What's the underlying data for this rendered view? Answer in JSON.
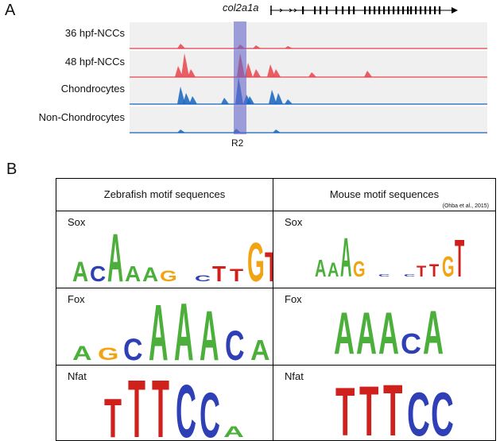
{
  "panel_a": {
    "letter": "A",
    "gene": "col2a1a",
    "tracks": [
      {
        "label": "36 hpf-NCCs",
        "color": "#e8444c"
      },
      {
        "label": "48 hpf-NCCs",
        "color": "#e8444c"
      },
      {
        "label": "Chondrocytes",
        "color": "#1565c0"
      },
      {
        "label": "Non-Chondrocytes",
        "color": "#1565c0"
      }
    ],
    "region_label": "R2"
  },
  "panel_b": {
    "letter": "B",
    "columns": [
      {
        "header": "Zebrafish motif sequences",
        "citation": ""
      },
      {
        "header": "Mouse motif sequences",
        "citation": "(Ohba et al., 2015)"
      }
    ],
    "rows": [
      {
        "motif": "Sox"
      },
      {
        "motif": "Fox"
      },
      {
        "motif": "Nfat"
      }
    ]
  },
  "logo_letters": {
    "zebrafish_sox": "ACAAAG CTTGT",
    "mouse_sox": "AAAG C CTTGT",
    "zebrafish_fox": "AGCAAACAG",
    "mouse_fox": "AAACA",
    "zebrafish_nfat": "TTTCCA",
    "mouse_nfat": "TTTCC"
  }
}
